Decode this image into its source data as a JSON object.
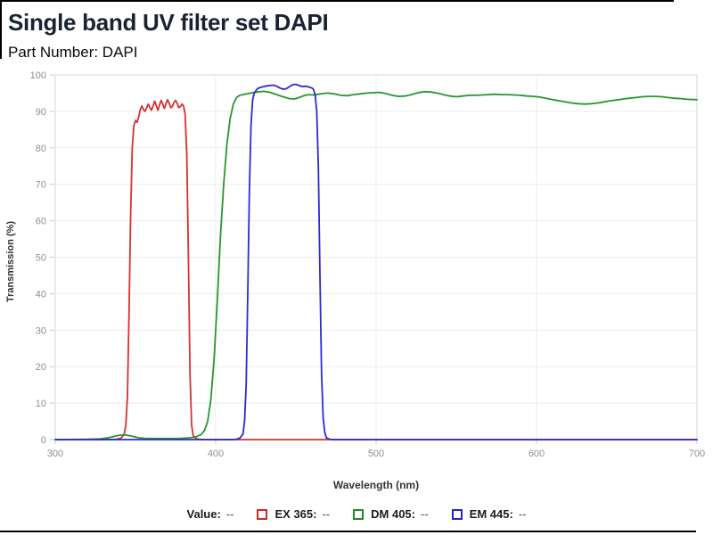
{
  "page": {
    "title": "Single band UV filter set DAPI",
    "subtitle": "Part Number: DAPI"
  },
  "legend": {
    "value_label": "Value:",
    "value": "--",
    "items": [
      {
        "label": "EX 365:",
        "value": "--",
        "color": "#cd2a2a"
      },
      {
        "label": "DM 405:",
        "value": "--",
        "color": "#1f8b2a"
      },
      {
        "label": "EM 445:",
        "value": "--",
        "color": "#2525bd"
      }
    ]
  },
  "chart_data": {
    "type": "line",
    "title": "Single band UV filter set DAPI",
    "xlabel": "Wavelength (nm)",
    "ylabel": "Transmission (%)",
    "xlim": [
      300,
      700
    ],
    "ylim": [
      0,
      100
    ],
    "x_ticks": [
      300,
      400,
      500,
      600,
      700
    ],
    "y_ticks": [
      0,
      10,
      20,
      30,
      40,
      50,
      60,
      70,
      80,
      90,
      100
    ],
    "grid": true,
    "legend_position": "bottom",
    "series": [
      {
        "name": "EX 365",
        "color": "#d93030",
        "points": [
          [
            300,
            0
          ],
          [
            334,
            0
          ],
          [
            338,
            0.1
          ],
          [
            341,
            0.4
          ],
          [
            343,
            1.5
          ],
          [
            344,
            4
          ],
          [
            345,
            12
          ],
          [
            346,
            35
          ],
          [
            347,
            62
          ],
          [
            348,
            80
          ],
          [
            349,
            86
          ],
          [
            350,
            87.5
          ],
          [
            351,
            87
          ],
          [
            352,
            88.5
          ],
          [
            353,
            90.5
          ],
          [
            354,
            91.5
          ],
          [
            355,
            90.5
          ],
          [
            356,
            90
          ],
          [
            357,
            91
          ],
          [
            358,
            92
          ],
          [
            359,
            91
          ],
          [
            360,
            90.3
          ],
          [
            361,
            91.5
          ],
          [
            362,
            92.8
          ],
          [
            363,
            91.5
          ],
          [
            364,
            90.3
          ],
          [
            365,
            91.8
          ],
          [
            366,
            93
          ],
          [
            367,
            92
          ],
          [
            368,
            90.8
          ],
          [
            369,
            92
          ],
          [
            370,
            93.2
          ],
          [
            371,
            92.3
          ],
          [
            372,
            91
          ],
          [
            373,
            91.3
          ],
          [
            374,
            92.5
          ],
          [
            375,
            93
          ],
          [
            376,
            92.2
          ],
          [
            377,
            91
          ],
          [
            378,
            91.3
          ],
          [
            379,
            92
          ],
          [
            380,
            91.5
          ],
          [
            381,
            89
          ],
          [
            382,
            78
          ],
          [
            383,
            50
          ],
          [
            384,
            18
          ],
          [
            385,
            4
          ],
          [
            386,
            1
          ],
          [
            388,
            0.2
          ],
          [
            392,
            0
          ],
          [
            700,
            0
          ]
        ]
      },
      {
        "name": "DM 405",
        "color": "#27962e",
        "points": [
          [
            300,
            0
          ],
          [
            320,
            0.1
          ],
          [
            328,
            0.2
          ],
          [
            333,
            0.5
          ],
          [
            337,
            0.9
          ],
          [
            340,
            1.2
          ],
          [
            343,
            1.3
          ],
          [
            346,
            1.1
          ],
          [
            349,
            0.8
          ],
          [
            352,
            0.5
          ],
          [
            356,
            0.35
          ],
          [
            362,
            0.3
          ],
          [
            370,
            0.3
          ],
          [
            378,
            0.35
          ],
          [
            384,
            0.5
          ],
          [
            388,
            0.8
          ],
          [
            391,
            1.4
          ],
          [
            393,
            2.5
          ],
          [
            395,
            5
          ],
          [
            397,
            11
          ],
          [
            399,
            22
          ],
          [
            401,
            38
          ],
          [
            403,
            56
          ],
          [
            405,
            70
          ],
          [
            407,
            81
          ],
          [
            409,
            88
          ],
          [
            411,
            92
          ],
          [
            413,
            93.8
          ],
          [
            415,
            94.4
          ],
          [
            418,
            94.7
          ],
          [
            422,
            95
          ],
          [
            426,
            95.3
          ],
          [
            430,
            95.5
          ],
          [
            434,
            95.2
          ],
          [
            438,
            94.6
          ],
          [
            442,
            94
          ],
          [
            446,
            93.5
          ],
          [
            449,
            93.4
          ],
          [
            452,
            93.8
          ],
          [
            455,
            94.3
          ],
          [
            458,
            94.6
          ],
          [
            461,
            94.5
          ],
          [
            464,
            94.7
          ],
          [
            467,
            94.9
          ],
          [
            470,
            95
          ],
          [
            474,
            94.8
          ],
          [
            478,
            94.4
          ],
          [
            482,
            94.3
          ],
          [
            486,
            94.6
          ],
          [
            490,
            94.8
          ],
          [
            494,
            95
          ],
          [
            498,
            95.1
          ],
          [
            502,
            95.2
          ],
          [
            506,
            94.9
          ],
          [
            510,
            94.4
          ],
          [
            514,
            94.1
          ],
          [
            518,
            94.2
          ],
          [
            522,
            94.6
          ],
          [
            526,
            95.1
          ],
          [
            530,
            95.4
          ],
          [
            534,
            95.3
          ],
          [
            538,
            95
          ],
          [
            542,
            94.6
          ],
          [
            546,
            94.2
          ],
          [
            550,
            94
          ],
          [
            554,
            94.2
          ],
          [
            558,
            94.4
          ],
          [
            562,
            94.4
          ],
          [
            566,
            94.5
          ],
          [
            570,
            94.6
          ],
          [
            574,
            94.7
          ],
          [
            578,
            94.6
          ],
          [
            582,
            94.6
          ],
          [
            586,
            94.5
          ],
          [
            590,
            94.4
          ],
          [
            594,
            94.2
          ],
          [
            598,
            94.1
          ],
          [
            602,
            93.9
          ],
          [
            606,
            93.6
          ],
          [
            610,
            93.2
          ],
          [
            614,
            92.9
          ],
          [
            618,
            92.6
          ],
          [
            622,
            92.3
          ],
          [
            626,
            92.1
          ],
          [
            630,
            92
          ],
          [
            634,
            92.1
          ],
          [
            638,
            92.3
          ],
          [
            642,
            92.6
          ],
          [
            646,
            92.9
          ],
          [
            650,
            93.1
          ],
          [
            654,
            93.4
          ],
          [
            658,
            93.6
          ],
          [
            662,
            93.8
          ],
          [
            666,
            94
          ],
          [
            670,
            94.1
          ],
          [
            674,
            94.1
          ],
          [
            678,
            94
          ],
          [
            682,
            93.8
          ],
          [
            686,
            93.6
          ],
          [
            690,
            93.5
          ],
          [
            694,
            93.3
          ],
          [
            700,
            93.2
          ]
        ]
      },
      {
        "name": "EM 445",
        "color": "#2b2bd0",
        "points": [
          [
            300,
            0
          ],
          [
            410,
            0
          ],
          [
            413,
            0.1
          ],
          [
            415,
            0.4
          ],
          [
            417,
            1.5
          ],
          [
            418,
            5
          ],
          [
            419,
            15
          ],
          [
            420,
            40
          ],
          [
            421,
            68
          ],
          [
            422,
            86
          ],
          [
            423,
            93
          ],
          [
            424,
            95
          ],
          [
            426,
            96.2
          ],
          [
            428,
            96.6
          ],
          [
            430,
            96.8
          ],
          [
            432,
            97
          ],
          [
            434,
            97.1
          ],
          [
            436,
            97.2
          ],
          [
            438,
            96.9
          ],
          [
            440,
            96.4
          ],
          [
            442,
            96.1
          ],
          [
            444,
            96.2
          ],
          [
            446,
            96.8
          ],
          [
            448,
            97.3
          ],
          [
            450,
            97.4
          ],
          [
            452,
            97.1
          ],
          [
            454,
            96.8
          ],
          [
            456,
            96.9
          ],
          [
            458,
            96.7
          ],
          [
            460,
            96.4
          ],
          [
            461,
            96
          ],
          [
            462,
            94.5
          ],
          [
            463,
            90
          ],
          [
            464,
            75
          ],
          [
            465,
            45
          ],
          [
            466,
            18
          ],
          [
            467,
            6
          ],
          [
            468,
            2
          ],
          [
            469,
            0.5
          ],
          [
            471,
            0.1
          ],
          [
            474,
            0
          ],
          [
            700,
            0
          ]
        ]
      }
    ]
  }
}
